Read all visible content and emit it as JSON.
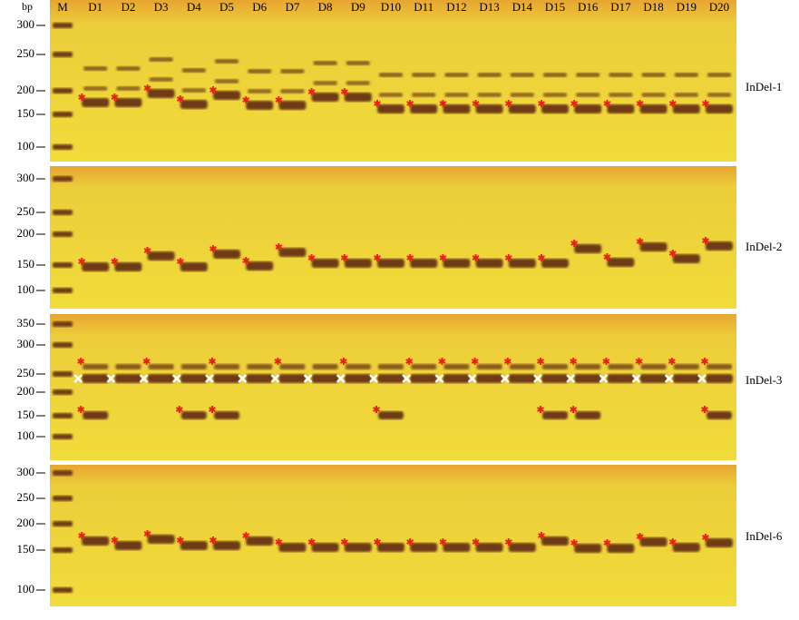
{
  "header": {
    "unit": "bp"
  },
  "lanes": [
    "M",
    "D1",
    "D2",
    "D3",
    "D4",
    "D5",
    "D6",
    "D7",
    "D8",
    "D9",
    "D10",
    "D11",
    "D12",
    "D13",
    "D14",
    "D15",
    "D16",
    "D17",
    "D18",
    "D19",
    "D20"
  ],
  "panels": [
    {
      "label": "InDel-1",
      "ticks": [
        "300",
        "250",
        "200",
        "150",
        "100"
      ]
    },
    {
      "label": "InDel-2",
      "ticks": [
        "300",
        "250",
        "200",
        "150",
        "100"
      ]
    },
    {
      "label": "InDel-3",
      "ticks": [
        "350",
        "300",
        "250",
        "200",
        "150",
        "100"
      ]
    },
    {
      "label": "InDel-6",
      "ticks": [
        "300",
        "250",
        "200",
        "150",
        "100"
      ]
    }
  ]
}
